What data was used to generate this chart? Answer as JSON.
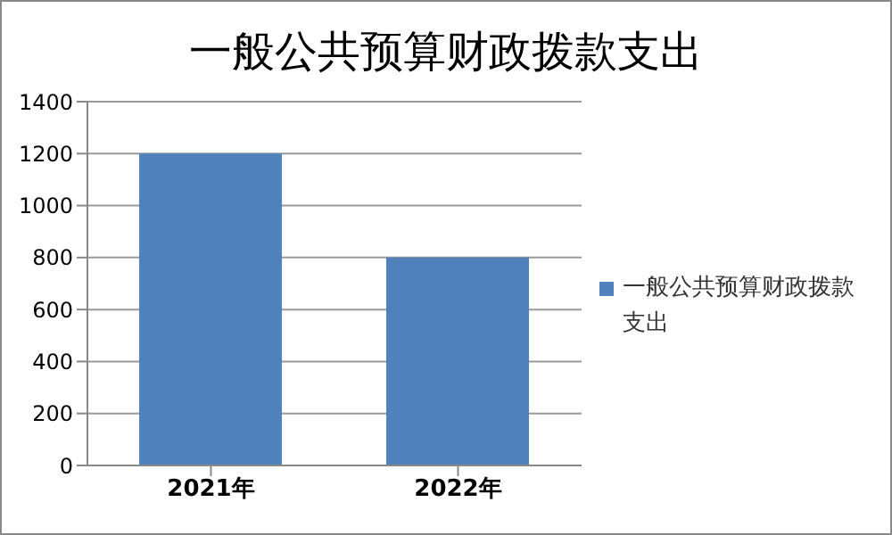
{
  "chart_data": {
    "type": "bar",
    "title": "一般公共预算财政拨款支出",
    "categories": [
      "2021年",
      "2022年"
    ],
    "series": [
      {
        "name": "一般公共预算财政拨款支出",
        "color": "#4f81bd",
        "values": [
          1200,
          800
        ]
      }
    ],
    "ylim": [
      0,
      1400
    ],
    "yticks": [
      0,
      200,
      400,
      600,
      800,
      1000,
      1200,
      1400
    ],
    "grid": "y",
    "legend": "right"
  }
}
